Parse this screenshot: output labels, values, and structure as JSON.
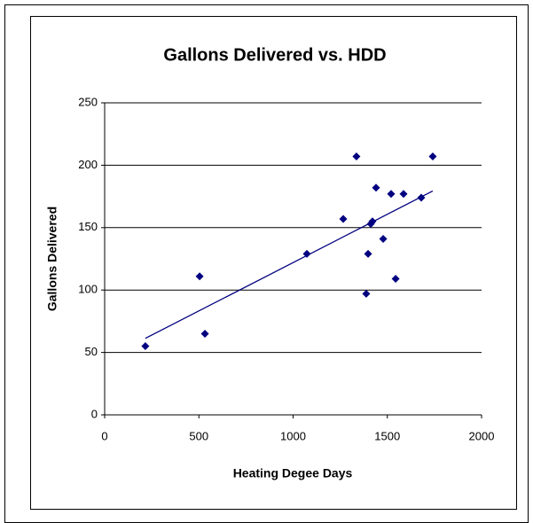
{
  "chart_data": {
    "type": "scatter",
    "title": "Gallons Delivered  vs. HDD",
    "x_label": "Heating Degee Days",
    "y_label": "Gallons Delivered",
    "series": [
      {
        "color": "#000080",
        "x": [
          216,
          504,
          532,
          1073,
          1266,
          1336,
          1388,
          1398,
          1412,
          1421,
          1440,
          1478,
          1520,
          1544,
          1586,
          1680,
          1741
        ],
        "values": [
          55,
          111,
          65,
          129,
          157,
          207,
          97,
          129,
          153,
          155,
          182,
          141,
          177,
          109,
          177,
          174,
          207
        ]
      }
    ],
    "trendline": true,
    "xlim": [
      0,
      2000
    ],
    "xticks": [
      0,
      500,
      1000,
      1500,
      2000
    ],
    "ylim": [
      0,
      250
    ],
    "yticks": [
      0,
      50,
      100,
      150,
      200,
      250
    ],
    "grid": true
  }
}
